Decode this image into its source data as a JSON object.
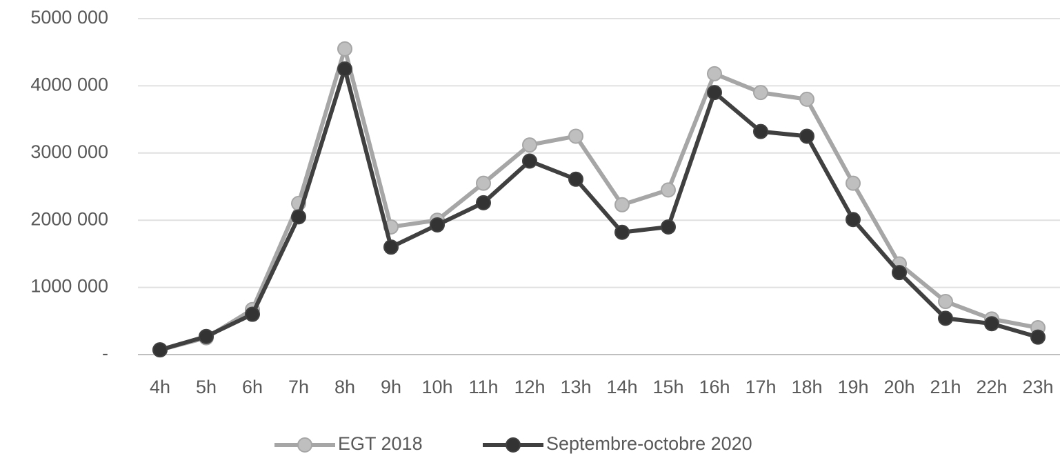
{
  "chart_data": {
    "type": "line",
    "categories": [
      "4h",
      "5h",
      "6h",
      "7h",
      "8h",
      "9h",
      "10h",
      "11h",
      "12h",
      "13h",
      "14h",
      "15h",
      "16h",
      "17h",
      "18h",
      "19h",
      "20h",
      "21h",
      "22h",
      "23h"
    ],
    "series": [
      {
        "name": "EGT 2018",
        "color": "#a6a6a6",
        "marker_color": "#bfbfbf",
        "values": [
          70000,
          250000,
          670000,
          2250000,
          4550000,
          1900000,
          2000000,
          2550000,
          3120000,
          3250000,
          2230000,
          2450000,
          4180000,
          3900000,
          3800000,
          2550000,
          1350000,
          790000,
          530000,
          400000
        ]
      },
      {
        "name": "Septembre-octobre 2020",
        "color": "#404040",
        "marker_color": "#333333",
        "values": [
          70000,
          270000,
          600000,
          2050000,
          4250000,
          1600000,
          1930000,
          2260000,
          2880000,
          2610000,
          1820000,
          1900000,
          3900000,
          3320000,
          3250000,
          2010000,
          1220000,
          540000,
          460000,
          260000
        ]
      }
    ],
    "ylim": [
      0,
      5000000
    ],
    "yticks": [
      {
        "value": 0,
        "label": "-"
      },
      {
        "value": 1000000,
        "label": "1000 000"
      },
      {
        "value": 2000000,
        "label": "2000 000"
      },
      {
        "value": 3000000,
        "label": "3000 000"
      },
      {
        "value": 4000000,
        "label": "4000 000"
      },
      {
        "value": 5000000,
        "label": "5000 000"
      }
    ],
    "grid": true,
    "legend": "bottom"
  }
}
